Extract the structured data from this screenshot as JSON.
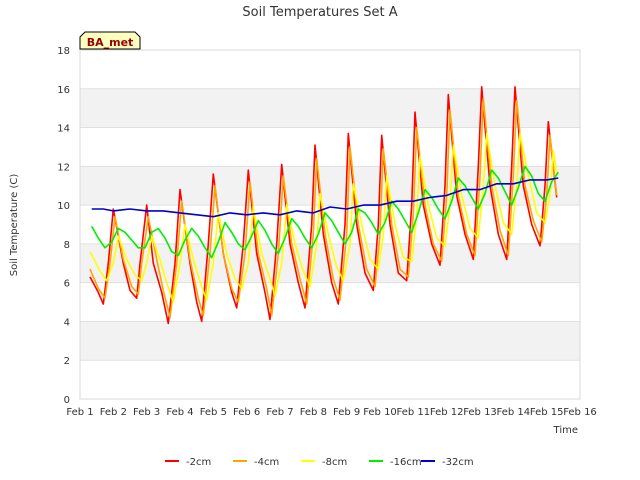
{
  "chart_data": {
    "type": "line",
    "title": "Soil Temperatures Set A",
    "xlabel": "Time",
    "ylabel": "Soil Temperature (C)",
    "badge": "BA_met",
    "xlim": [
      1,
      16
    ],
    "ylim": [
      0,
      18
    ],
    "x_ticks": [
      {
        "value": 1,
        "label": "Feb 1"
      },
      {
        "value": 2,
        "label": "Feb 2"
      },
      {
        "value": 3,
        "label": "Feb 3"
      },
      {
        "value": 4,
        "label": "Feb 4"
      },
      {
        "value": 5,
        "label": "Feb 5"
      },
      {
        "value": 6,
        "label": "Feb 6"
      },
      {
        "value": 7,
        "label": "Feb 7"
      },
      {
        "value": 8,
        "label": "Feb 8"
      },
      {
        "value": 9,
        "label": "Feb 9"
      },
      {
        "value": 10,
        "label": "Feb 10"
      },
      {
        "value": 11,
        "label": "Feb 11"
      },
      {
        "value": 12,
        "label": "Feb 12"
      },
      {
        "value": 13,
        "label": "Feb 13"
      },
      {
        "value": 14,
        "label": "Feb 14"
      },
      {
        "value": 15,
        "label": "Feb 15"
      },
      {
        "value": 16,
        "label": "Feb 16"
      }
    ],
    "y_ticks": [
      0,
      2,
      4,
      6,
      8,
      10,
      12,
      14,
      16,
      18
    ],
    "grid": "horizontal bands",
    "legend_position": "bottom-center",
    "series": [
      {
        "name": "-2cm",
        "color": "#ff0000",
        "x": [
          1.3,
          1.55,
          1.7,
          1.85,
          2.0,
          2.3,
          2.5,
          2.7,
          2.8,
          3.0,
          3.2,
          3.45,
          3.65,
          3.85,
          4.0,
          4.3,
          4.5,
          4.65,
          4.85,
          5.0,
          5.3,
          5.55,
          5.7,
          5.9,
          6.05,
          6.3,
          6.55,
          6.7,
          6.9,
          7.05,
          7.3,
          7.55,
          7.75,
          7.95,
          8.05,
          8.3,
          8.55,
          8.75,
          8.95,
          9.05,
          9.3,
          9.55,
          9.8,
          9.95,
          10.05,
          10.3,
          10.55,
          10.8,
          10.95,
          11.05,
          11.3,
          11.55,
          11.8,
          11.95,
          12.05,
          12.3,
          12.55,
          12.8,
          12.95,
          13.05,
          13.3,
          13.55,
          13.8,
          13.95,
          14.05,
          14.3,
          14.55,
          14.8,
          14.95,
          15.05,
          15.3
        ],
        "y": [
          6.3,
          5.5,
          4.9,
          7.0,
          9.8,
          7.0,
          5.6,
          5.2,
          7.0,
          10.0,
          7.0,
          5.5,
          3.9,
          7.0,
          10.8,
          7.0,
          5.0,
          4.0,
          8.0,
          11.6,
          7.5,
          5.5,
          4.7,
          8.0,
          11.8,
          7.5,
          5.5,
          4.1,
          8.0,
          12.1,
          8.0,
          6.0,
          4.7,
          9.0,
          13.1,
          8.5,
          6.0,
          4.9,
          9.0,
          13.7,
          9.0,
          6.5,
          5.6,
          9.0,
          13.6,
          9.0,
          6.5,
          6.1,
          10.0,
          14.8,
          10.0,
          8.0,
          6.9,
          11.0,
          15.7,
          10.5,
          8.5,
          7.2,
          12.0,
          16.1,
          11.0,
          8.5,
          7.2,
          12.0,
          16.1,
          11.0,
          9.0,
          7.9,
          11.0,
          14.3,
          10.4
        ]
      },
      {
        "name": "-4cm",
        "color": "#ffa500",
        "x": [
          1.3,
          1.55,
          1.75,
          1.9,
          2.05,
          2.3,
          2.55,
          2.75,
          2.85,
          3.05,
          3.3,
          3.5,
          3.7,
          3.9,
          4.05,
          4.3,
          4.55,
          4.7,
          4.9,
          5.05,
          5.3,
          5.55,
          5.75,
          5.95,
          6.1,
          6.35,
          6.6,
          6.75,
          6.95,
          7.1,
          7.35,
          7.6,
          7.8,
          8.0,
          8.1,
          8.35,
          8.6,
          8.8,
          9.0,
          9.1,
          9.35,
          9.6,
          9.85,
          10.0,
          10.1,
          10.35,
          10.6,
          10.85,
          11.0,
          11.1,
          11.35,
          11.6,
          11.85,
          12.0,
          12.1,
          12.35,
          12.6,
          12.85,
          13.0,
          13.1,
          13.35,
          13.6,
          13.85,
          14.0,
          14.1,
          14.35,
          14.6,
          14.85,
          15.0,
          15.1,
          15.3
        ],
        "y": [
          6.7,
          5.7,
          5.2,
          7.0,
          9.4,
          7.2,
          5.8,
          5.4,
          7.0,
          9.4,
          7.2,
          5.6,
          4.2,
          7.0,
          10.2,
          7.2,
          5.2,
          4.3,
          7.5,
          11.0,
          7.5,
          5.7,
          5.0,
          7.5,
          11.2,
          7.5,
          5.7,
          4.3,
          7.5,
          11.5,
          8.0,
          6.2,
          4.9,
          8.5,
          12.4,
          8.5,
          6.2,
          5.1,
          8.5,
          13.0,
          9.0,
          6.7,
          5.8,
          8.5,
          12.9,
          9.0,
          6.7,
          6.3,
          9.5,
          14.0,
          10.0,
          8.0,
          7.1,
          10.5,
          14.9,
          10.5,
          8.5,
          7.4,
          11.5,
          15.5,
          11.0,
          8.7,
          7.4,
          11.5,
          15.4,
          11.0,
          9.2,
          8.1,
          10.5,
          13.6,
          10.5
        ]
      },
      {
        "name": "-8cm",
        "color": "#ffff00",
        "x": [
          1.3,
          1.6,
          1.8,
          2.0,
          2.15,
          2.4,
          2.65,
          2.85,
          3.0,
          3.15,
          3.4,
          3.6,
          3.8,
          4.0,
          4.15,
          4.4,
          4.65,
          4.8,
          5.0,
          5.15,
          5.4,
          5.65,
          5.85,
          6.05,
          6.2,
          6.45,
          6.7,
          6.85,
          7.05,
          7.2,
          7.45,
          7.7,
          7.9,
          8.1,
          8.2,
          8.45,
          8.7,
          8.9,
          9.1,
          9.2,
          9.45,
          9.7,
          9.95,
          10.1,
          10.2,
          10.45,
          10.7,
          10.95,
          11.1,
          11.2,
          11.45,
          11.7,
          11.95,
          12.1,
          12.2,
          12.45,
          12.7,
          12.95,
          13.1,
          13.2,
          13.45,
          13.7,
          13.95,
          14.1,
          14.2,
          14.45,
          14.7,
          14.95,
          15.1,
          15.2,
          15.3
        ],
        "y": [
          7.6,
          6.6,
          6.1,
          7.0,
          8.4,
          7.2,
          6.4,
          6.1,
          7.0,
          8.4,
          7.2,
          6.0,
          5.0,
          7.0,
          9.0,
          7.2,
          5.8,
          5.1,
          7.0,
          9.6,
          7.5,
          6.2,
          5.7,
          7.0,
          9.9,
          7.5,
          6.2,
          5.3,
          7.0,
          10.0,
          8.0,
          6.6,
          5.8,
          8.0,
          10.6,
          8.5,
          6.8,
          6.1,
          8.0,
          11.1,
          9.0,
          7.2,
          6.7,
          8.5,
          11.5,
          9.0,
          7.3,
          7.1,
          9.5,
          12.5,
          10.0,
          8.3,
          7.9,
          10.0,
          13.1,
          10.5,
          8.8,
          8.3,
          11.0,
          13.7,
          11.0,
          9.1,
          8.5,
          11.0,
          13.7,
          11.5,
          9.6,
          9.1,
          10.5,
          12.8,
          11.6
        ]
      },
      {
        "name": "-16cm",
        "color": "#00ee00",
        "x": [
          1.35,
          1.55,
          1.75,
          1.95,
          2.15,
          2.35,
          2.55,
          2.75,
          2.95,
          3.15,
          3.35,
          3.55,
          3.75,
          3.95,
          4.15,
          4.35,
          4.55,
          4.75,
          4.95,
          5.15,
          5.35,
          5.55,
          5.75,
          5.95,
          6.15,
          6.35,
          6.55,
          6.75,
          6.95,
          7.15,
          7.35,
          7.55,
          7.75,
          7.95,
          8.15,
          8.35,
          8.55,
          8.75,
          8.95,
          9.15,
          9.35,
          9.55,
          9.75,
          9.95,
          10.15,
          10.35,
          10.55,
          10.75,
          10.95,
          11.15,
          11.35,
          11.55,
          11.75,
          11.95,
          12.15,
          12.35,
          12.55,
          12.75,
          12.95,
          13.15,
          13.35,
          13.55,
          13.75,
          13.95,
          14.15,
          14.35,
          14.55,
          14.75,
          14.95,
          15.15,
          15.35
        ],
        "y": [
          8.9,
          8.3,
          7.8,
          8.1,
          8.8,
          8.6,
          8.2,
          7.8,
          7.8,
          8.6,
          8.8,
          8.3,
          7.6,
          7.4,
          8.2,
          8.8,
          8.4,
          7.8,
          7.3,
          8.1,
          9.1,
          8.6,
          8.0,
          7.7,
          8.4,
          9.2,
          8.7,
          8.0,
          7.5,
          8.3,
          9.3,
          8.9,
          8.3,
          7.8,
          8.5,
          9.6,
          9.2,
          8.6,
          8.0,
          8.6,
          9.8,
          9.6,
          9.1,
          8.5,
          9.1,
          10.2,
          9.8,
          9.2,
          8.6,
          9.6,
          10.8,
          10.4,
          9.8,
          9.3,
          10.2,
          11.4,
          11.0,
          10.4,
          9.8,
          10.6,
          11.8,
          11.4,
          10.7,
          10.0,
          10.9,
          12.0,
          11.5,
          10.6,
          10.2,
          11.2,
          11.7
        ]
      },
      {
        "name": "-32cm",
        "color": "#0000cc",
        "x": [
          1.35,
          1.7,
          2.0,
          2.5,
          3.0,
          3.5,
          4.0,
          4.5,
          5.0,
          5.5,
          6.0,
          6.5,
          7.0,
          7.5,
          8.0,
          8.5,
          9.0,
          9.5,
          10.0,
          10.5,
          11.0,
          11.5,
          12.0,
          12.5,
          13.0,
          13.5,
          14.0,
          14.5,
          15.0,
          15.35
        ],
        "y": [
          9.8,
          9.8,
          9.7,
          9.8,
          9.7,
          9.7,
          9.6,
          9.5,
          9.4,
          9.6,
          9.5,
          9.6,
          9.5,
          9.7,
          9.6,
          9.9,
          9.8,
          10.0,
          10.0,
          10.2,
          10.2,
          10.4,
          10.5,
          10.8,
          10.8,
          11.1,
          11.1,
          11.3,
          11.3,
          11.4
        ]
      }
    ]
  }
}
